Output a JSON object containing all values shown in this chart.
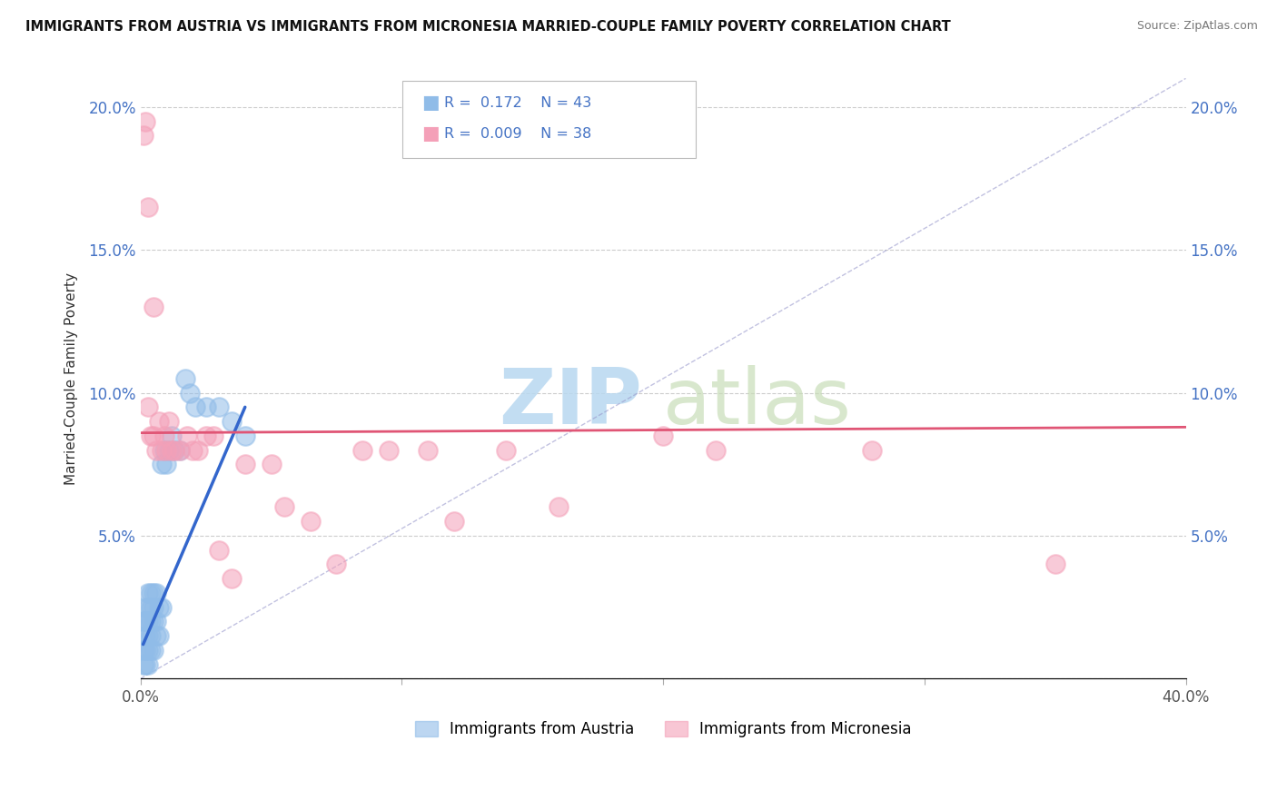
{
  "title": "IMMIGRANTS FROM AUSTRIA VS IMMIGRANTS FROM MICRONESIA MARRIED-COUPLE FAMILY POVERTY CORRELATION CHART",
  "source": "Source: ZipAtlas.com",
  "ylabel": "Married-Couple Family Poverty",
  "xlim": [
    0,
    0.4
  ],
  "ylim": [
    0,
    0.21
  ],
  "austria_color": "#90bce8",
  "micronesia_color": "#f4a0b8",
  "austria_label": "Immigrants from Austria",
  "micronesia_label": "Immigrants from Micronesia",
  "austria_R": "0.172",
  "austria_N": "43",
  "micronesia_R": "0.009",
  "micronesia_N": "38",
  "watermark_zip": "ZIP",
  "watermark_atlas": "atlas",
  "austria_x": [
    0.001,
    0.001,
    0.001,
    0.002,
    0.002,
    0.002,
    0.002,
    0.002,
    0.003,
    0.003,
    0.003,
    0.003,
    0.003,
    0.003,
    0.004,
    0.004,
    0.004,
    0.004,
    0.004,
    0.005,
    0.005,
    0.005,
    0.005,
    0.006,
    0.006,
    0.006,
    0.007,
    0.007,
    0.008,
    0.008,
    0.009,
    0.01,
    0.011,
    0.012,
    0.013,
    0.015,
    0.017,
    0.019,
    0.021,
    0.025,
    0.03,
    0.035,
    0.04
  ],
  "austria_y": [
    0.005,
    0.01,
    0.02,
    0.005,
    0.01,
    0.015,
    0.02,
    0.025,
    0.005,
    0.01,
    0.015,
    0.02,
    0.025,
    0.03,
    0.01,
    0.015,
    0.02,
    0.025,
    0.03,
    0.01,
    0.02,
    0.025,
    0.03,
    0.015,
    0.02,
    0.03,
    0.015,
    0.025,
    0.025,
    0.075,
    0.08,
    0.075,
    0.08,
    0.085,
    0.08,
    0.08,
    0.105,
    0.1,
    0.095,
    0.095,
    0.095,
    0.09,
    0.085
  ],
  "micronesia_x": [
    0.001,
    0.002,
    0.003,
    0.003,
    0.004,
    0.005,
    0.005,
    0.006,
    0.007,
    0.008,
    0.009,
    0.01,
    0.011,
    0.012,
    0.013,
    0.015,
    0.018,
    0.02,
    0.022,
    0.025,
    0.028,
    0.03,
    0.035,
    0.04,
    0.05,
    0.055,
    0.065,
    0.075,
    0.085,
    0.095,
    0.11,
    0.12,
    0.14,
    0.16,
    0.2,
    0.22,
    0.28,
    0.35
  ],
  "micronesia_y": [
    0.19,
    0.195,
    0.165,
    0.095,
    0.085,
    0.13,
    0.085,
    0.08,
    0.09,
    0.08,
    0.085,
    0.08,
    0.09,
    0.08,
    0.08,
    0.08,
    0.085,
    0.08,
    0.08,
    0.085,
    0.085,
    0.045,
    0.035,
    0.075,
    0.075,
    0.06,
    0.055,
    0.04,
    0.08,
    0.08,
    0.08,
    0.055,
    0.08,
    0.06,
    0.085,
    0.08,
    0.08,
    0.04
  ],
  "austria_trend_x": [
    0.001,
    0.04
  ],
  "austria_trend_y_start": 0.012,
  "austria_trend_y_end": 0.095,
  "micronesia_trend_x": [
    0.0,
    0.4
  ],
  "micronesia_trend_y": [
    0.086,
    0.088
  ]
}
